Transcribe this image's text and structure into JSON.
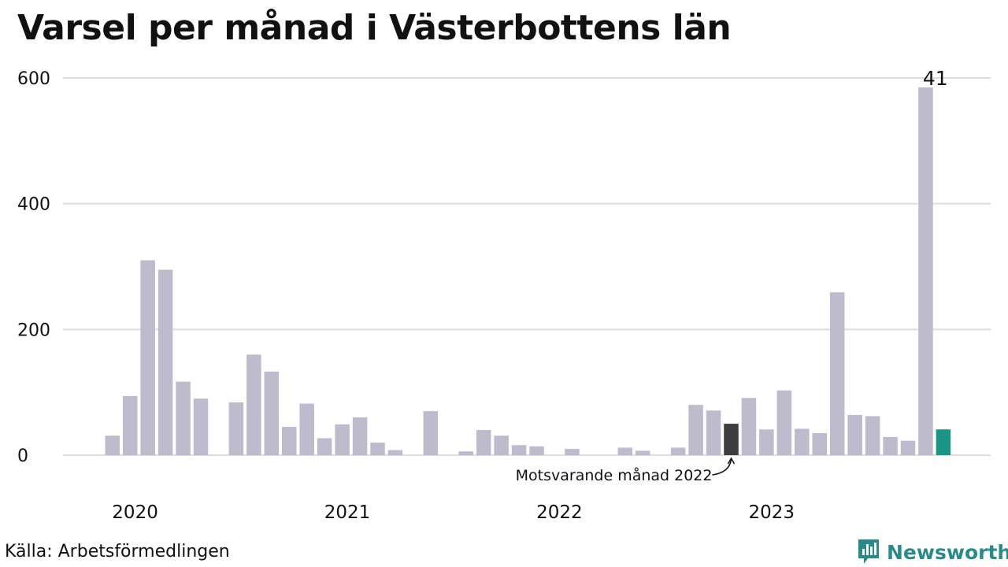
{
  "title": "Varsel per månad i Västerbottens län",
  "source": "Källa: Arbetsförmedlingen",
  "brand": "Newsworthy",
  "colors": {
    "bar": "#bdbbcc",
    "highlight_previous": "#3d3d3d",
    "current": "#1a9485",
    "grid": "#dddddd",
    "brand": "#2a8a8a"
  },
  "chart_data": {
    "type": "bar",
    "ylim": [
      0,
      600
    ],
    "yticks": [
      0,
      200,
      400,
      600
    ],
    "xtick_labels": [
      "2020",
      "2021",
      "2022",
      "2023"
    ],
    "latest_value_label": "41",
    "annotation": "Motsvarande månad 2022",
    "categories": [
      "2020-01",
      "2020-02",
      "2020-03",
      "2020-04",
      "2020-05",
      "2020-06",
      "2020-07",
      "2020-08",
      "2020-09",
      "2020-10",
      "2020-11",
      "2020-12",
      "2021-01",
      "2021-02",
      "2021-03",
      "2021-04",
      "2021-05",
      "2021-06",
      "2021-07",
      "2021-08",
      "2021-09",
      "2021-10",
      "2021-11",
      "2021-12",
      "2022-01",
      "2022-02",
      "2022-03",
      "2022-04",
      "2022-05",
      "2022-06",
      "2022-07",
      "2022-08",
      "2022-09",
      "2022-10",
      "2022-11",
      "2022-12",
      "2023-01",
      "2023-02",
      "2023-03",
      "2023-04",
      "2023-05",
      "2023-06",
      "2023-07",
      "2023-08",
      "2023-09",
      "2023-10",
      "2023-11",
      "2023-12",
      "2024-01"
    ],
    "values": [
      0,
      31,
      94,
      310,
      295,
      117,
      90,
      0,
      84,
      160,
      133,
      45,
      82,
      27,
      49,
      60,
      20,
      8,
      0,
      70,
      0,
      6,
      40,
      31,
      16,
      14,
      0,
      10,
      0,
      0,
      12,
      7,
      0,
      12,
      80,
      71,
      50,
      91,
      41,
      103,
      42,
      35,
      259,
      64,
      62,
      29,
      23,
      585,
      41
    ],
    "highlight_previous_index": 36,
    "current_index": 48
  }
}
